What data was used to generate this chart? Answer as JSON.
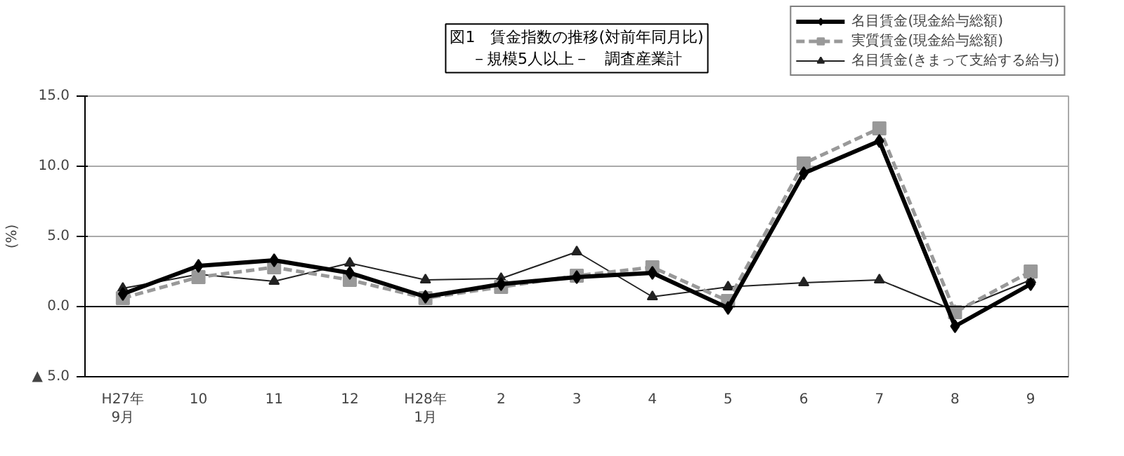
{
  "chart_data": {
    "type": "line",
    "title": "図1　賃金指数の推移(対前年同月比)\n－規模5人以上－　調査産業計",
    "ylabel": "(%)",
    "categories": [
      "H27年\n9月",
      "10",
      "11",
      "12",
      "H28年\n1月",
      "2",
      "3",
      "4",
      "5",
      "6",
      "7",
      "8",
      "9"
    ],
    "series": [
      {
        "name": "名目賃金(現金給与総額)",
        "color": "#000000",
        "marker": "diamond",
        "line_style": "solid",
        "values": [
          0.9,
          2.9,
          3.3,
          2.4,
          0.7,
          1.6,
          2.1,
          2.4,
          -0.1,
          9.5,
          11.8,
          -1.4,
          1.6
        ]
      },
      {
        "name": "実質賃金(現金給与総額)",
        "color": "#999999",
        "marker": "square",
        "line_style": "dashed",
        "values": [
          0.6,
          2.1,
          2.8,
          1.9,
          0.6,
          1.4,
          2.2,
          2.8,
          0.4,
          10.2,
          12.7,
          -0.4,
          2.5
        ]
      },
      {
        "name": "名目賃金(きまって支給する給与)",
        "color": "#222222",
        "marker": "triangle",
        "line_style": "solid",
        "values": [
          1.3,
          2.3,
          1.8,
          3.1,
          1.9,
          2.0,
          3.9,
          0.7,
          1.4,
          1.7,
          1.9,
          -0.3,
          1.9
        ]
      }
    ],
    "ylim": [
      -5,
      15
    ],
    "yticks": [
      {
        "value": -5,
        "label": "▲ 5.0"
      },
      {
        "value": 0,
        "label": "0.0"
      },
      {
        "value": 5,
        "label": "5.0"
      },
      {
        "value": 10,
        "label": "10.0"
      },
      {
        "value": 15,
        "label": "15.0"
      }
    ],
    "grid": "y",
    "legend": "top right"
  }
}
